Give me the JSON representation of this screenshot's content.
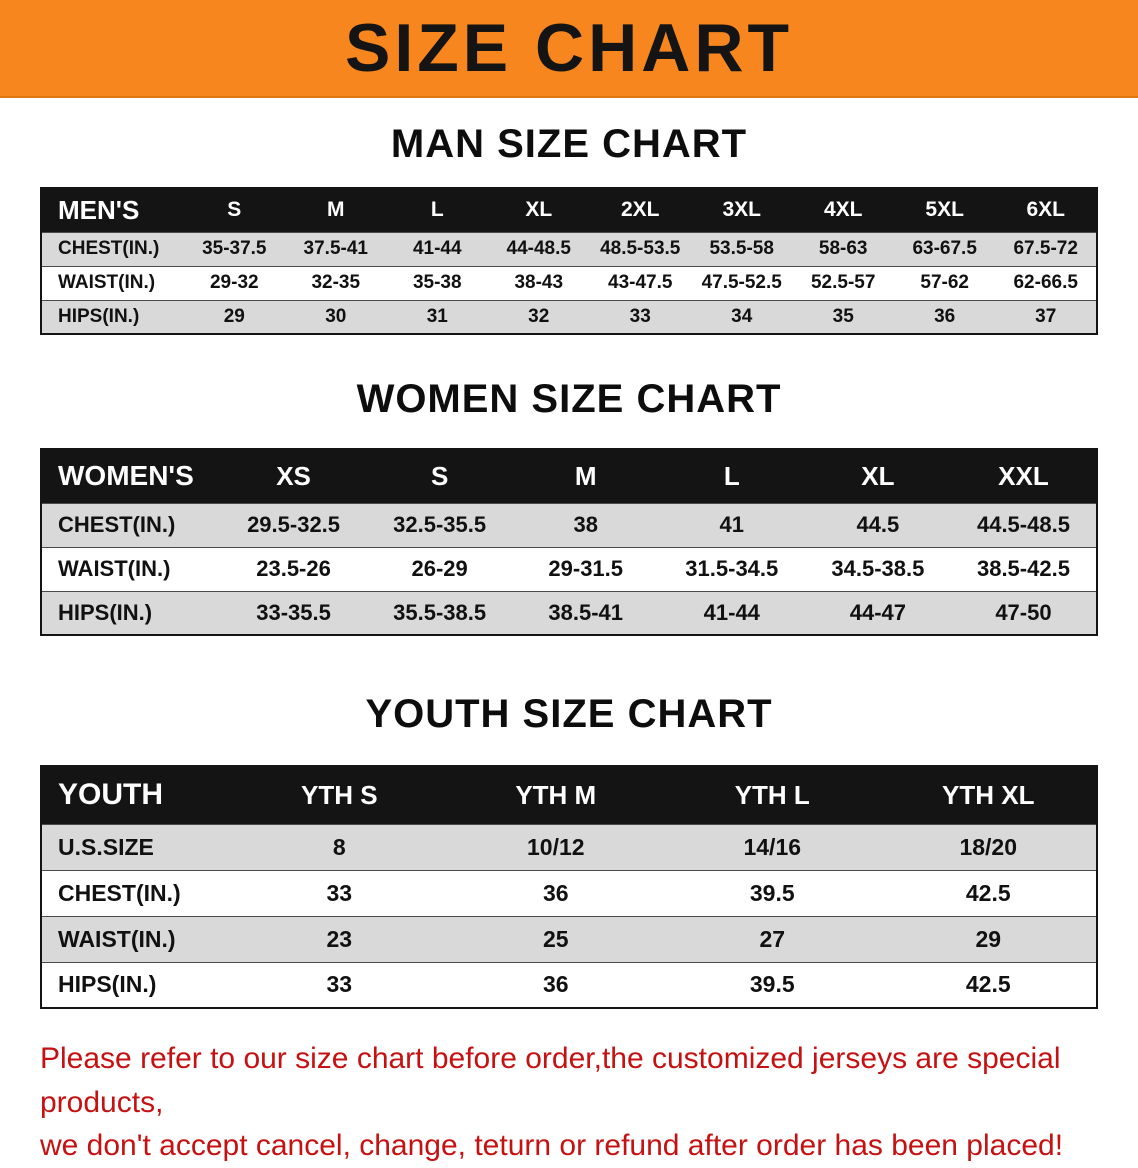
{
  "banner": {
    "title": "SIZE CHART"
  },
  "colors": {
    "banner_bg": "#f6861d",
    "table_header_bg": "#141414",
    "row_alt_bg": "#d9d9d9",
    "note_text": "#c51111"
  },
  "sections": [
    {
      "heading": "MAN SIZE CHART",
      "table": {
        "header": [
          "MEN'S",
          "S",
          "M",
          "L",
          "XL",
          "2XL",
          "3XL",
          "4XL",
          "5XL",
          "6XL"
        ],
        "rows": [
          [
            "CHEST(IN.)",
            "35-37.5",
            "37.5-41",
            "41-44",
            "44-48.5",
            "48.5-53.5",
            "53.5-58",
            "58-63",
            "63-67.5",
            "67.5-72"
          ],
          [
            "WAIST(IN.)",
            "29-32",
            "32-35",
            "35-38",
            "38-43",
            "43-47.5",
            "47.5-52.5",
            "52.5-57",
            "57-62",
            "62-66.5"
          ],
          [
            "HIPS(IN.)",
            "29",
            "30",
            "31",
            "32",
            "33",
            "34",
            "35",
            "36",
            "37"
          ]
        ]
      }
    },
    {
      "heading": "WOMEN SIZE CHART",
      "table": {
        "header": [
          "WOMEN'S",
          "XS",
          "S",
          "M",
          "L",
          "XL",
          "XXL"
        ],
        "rows": [
          [
            "CHEST(IN.)",
            "29.5-32.5",
            "32.5-35.5",
            "38",
            "41",
            "44.5",
            "44.5-48.5"
          ],
          [
            "WAIST(IN.)",
            "23.5-26",
            "26-29",
            "29-31.5",
            "31.5-34.5",
            "34.5-38.5",
            "38.5-42.5"
          ],
          [
            "HIPS(IN.)",
            "33-35.5",
            "35.5-38.5",
            "38.5-41",
            "41-44",
            "44-47",
            "47-50"
          ]
        ]
      }
    },
    {
      "heading": "YOUTH SIZE CHART",
      "table": {
        "header": [
          "YOUTH",
          "YTH S",
          "YTH M",
          "YTH L",
          "YTH XL"
        ],
        "rows": [
          [
            "U.S.SIZE",
            "8",
            "10/12",
            "14/16",
            "18/20"
          ],
          [
            "CHEST(IN.)",
            "33",
            "36",
            "39.5",
            "42.5"
          ],
          [
            "WAIST(IN.)",
            "23",
            "25",
            "27",
            "29"
          ],
          [
            "HIPS(IN.)",
            "33",
            "36",
            "39.5",
            "42.5"
          ]
        ]
      }
    }
  ],
  "footer": {
    "line1": "Please refer to our size chart before order,the customized jerseys are special products,",
    "line2": "we don't accept cancel, change, teturn or refund after order has been placed!"
  }
}
